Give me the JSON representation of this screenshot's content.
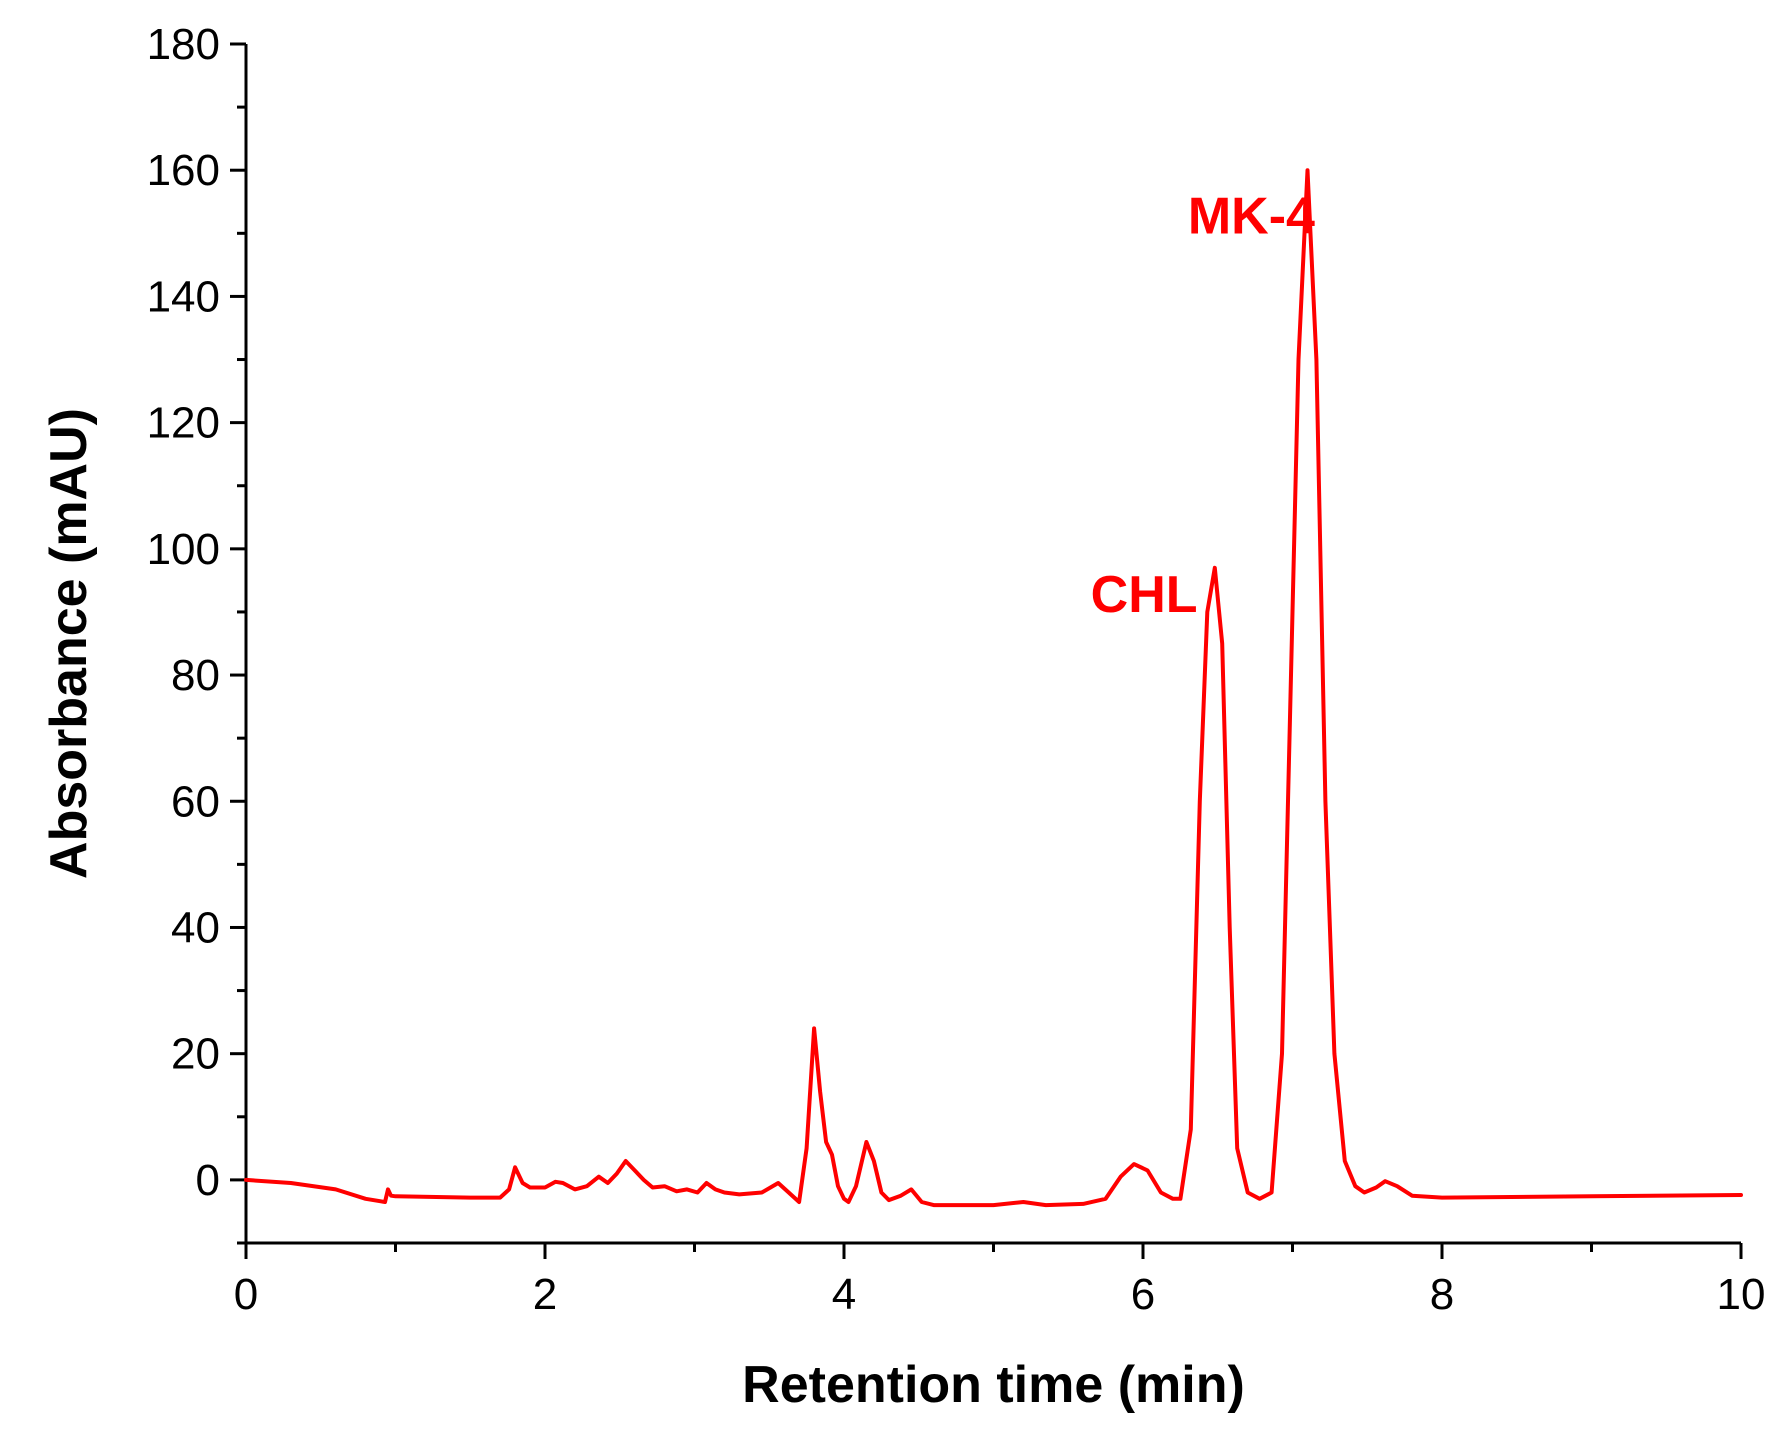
{
  "chart_data": {
    "type": "line",
    "title": "",
    "xlabel": "Retention time (min)",
    "ylabel": "Absorbance (mAU)",
    "xlim": [
      0,
      10
    ],
    "ylim": [
      -10,
      180
    ],
    "x_ticks": [
      0,
      2,
      4,
      6,
      8,
      10
    ],
    "x_tick_labels": [
      "0",
      "2",
      "4",
      "6",
      "8",
      "10"
    ],
    "y_ticks": [
      0,
      20,
      40,
      60,
      80,
      100,
      120,
      140,
      160,
      180
    ],
    "y_tick_labels": [
      "0",
      "20",
      "40",
      "60",
      "80",
      "100",
      "120",
      "140",
      "160",
      "180"
    ],
    "grid": false,
    "line_color": "#ff0000",
    "series": [
      {
        "name": "chromatogram",
        "x": [
          0,
          0.3,
          0.6,
          0.8,
          0.93,
          0.95,
          0.97,
          1.0,
          1.5,
          1.7,
          1.76,
          1.8,
          1.85,
          1.9,
          2.0,
          2.07,
          2.12,
          2.2,
          2.28,
          2.36,
          2.42,
          2.48,
          2.54,
          2.6,
          2.66,
          2.72,
          2.8,
          2.88,
          2.95,
          3.02,
          3.08,
          3.14,
          3.2,
          3.3,
          3.45,
          3.56,
          3.63,
          3.7,
          3.75,
          3.8,
          3.84,
          3.88,
          3.92,
          3.96,
          4.0,
          4.03,
          4.08,
          4.15,
          4.2,
          4.25,
          4.3,
          4.38,
          4.45,
          4.52,
          4.6,
          5.0,
          5.2,
          5.35,
          5.6,
          5.75,
          5.85,
          5.94,
          6.03,
          6.12,
          6.2,
          6.25,
          6.32,
          6.38,
          6.43,
          6.48,
          6.53,
          6.58,
          6.63,
          6.7,
          6.78,
          6.86,
          6.93,
          6.98,
          7.04,
          7.1,
          7.16,
          7.22,
          7.28,
          7.35,
          7.42,
          7.48,
          7.56,
          7.62,
          7.7,
          7.8,
          8.0,
          9.0,
          10.0
        ],
        "y": [
          0,
          -0.5,
          -1.5,
          -3.0,
          -3.5,
          -1.5,
          -2.5,
          -2.6,
          -2.8,
          -2.8,
          -1.5,
          2.0,
          -0.5,
          -1.2,
          -1.2,
          -0.3,
          -0.5,
          -1.5,
          -1.0,
          0.5,
          -0.5,
          1.0,
          3.0,
          1.5,
          0.0,
          -1.2,
          -1.0,
          -1.8,
          -1.5,
          -2.0,
          -0.5,
          -1.5,
          -2.0,
          -2.3,
          -2.0,
          -0.5,
          -2.0,
          -3.5,
          5.0,
          24.0,
          14.0,
          6.0,
          4.0,
          -1.0,
          -3.0,
          -3.5,
          -1.0,
          6.0,
          3.0,
          -2.0,
          -3.2,
          -2.5,
          -1.5,
          -3.5,
          -4.0,
          -4.0,
          -3.5,
          -4.0,
          -3.8,
          -3.0,
          0.5,
          2.5,
          1.5,
          -2.0,
          -3.0,
          -3.0,
          8.0,
          60.0,
          90.0,
          97.0,
          85.0,
          40.0,
          5.0,
          -2.0,
          -3.0,
          -2.0,
          20.0,
          70.0,
          130.0,
          160.0,
          130.0,
          60.0,
          20.0,
          3.0,
          -1.0,
          -2.0,
          -1.2,
          -0.2,
          -1.0,
          -2.5,
          -2.8,
          -2.6,
          -2.4
        ]
      }
    ],
    "annotations": [
      {
        "text": "CHL",
        "x": 5.65,
        "y": 90
      },
      {
        "text": "MK-4",
        "x": 6.3,
        "y": 150
      }
    ]
  }
}
